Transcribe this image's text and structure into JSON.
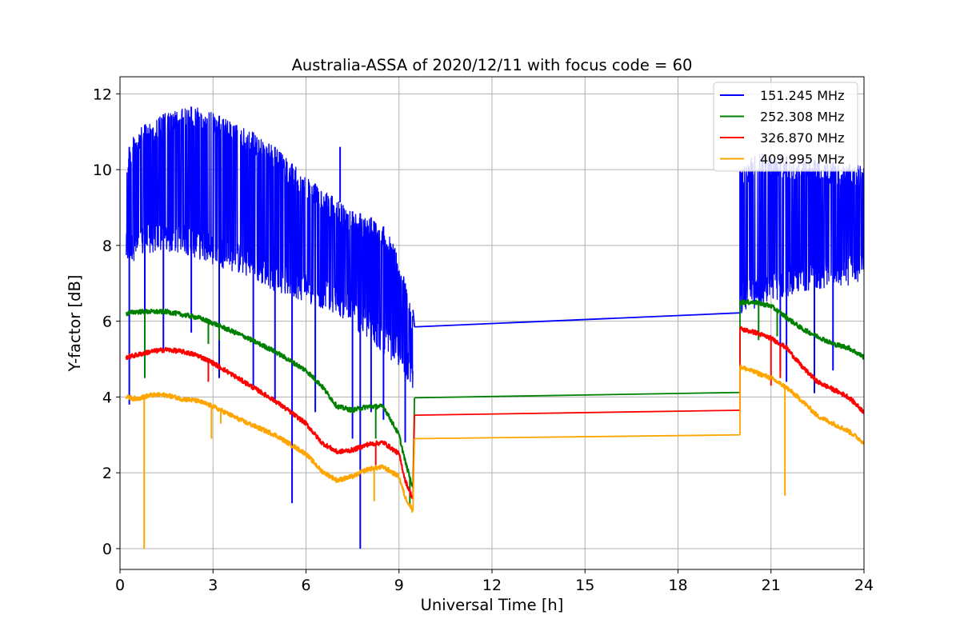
{
  "chart_data": {
    "type": "line",
    "title": "Australia-ASSA of 2020/12/11 with focus code = 60",
    "xlabel": "Universal Time [h]",
    "ylabel": "Y-factor [dB]",
    "xlim": [
      0,
      24
    ],
    "ylim": [
      -0.55,
      12.45
    ],
    "xticks": [
      0,
      3,
      6,
      9,
      12,
      15,
      18,
      21,
      24
    ],
    "xtick_labels": [
      "0",
      "3",
      "6",
      "9",
      "12",
      "15",
      "18",
      "21",
      "24"
    ],
    "yticks": [
      0,
      2,
      4,
      6,
      8,
      10,
      12
    ],
    "ytick_labels": [
      "0",
      "2",
      "4",
      "6",
      "8",
      "10",
      "12"
    ],
    "grid": true,
    "legend_position": "top-right",
    "series": [
      {
        "name": "151.245 MHz",
        "color": "#0000ff",
        "noisy": true,
        "upper": [
          [
            0.2,
            10.4
          ],
          [
            0.5,
            11.0
          ],
          [
            1.0,
            11.3
          ],
          [
            1.5,
            11.5
          ],
          [
            2.0,
            11.6
          ],
          [
            2.5,
            11.7
          ],
          [
            3.0,
            11.5
          ],
          [
            3.5,
            11.3
          ],
          [
            4.0,
            11.1
          ],
          [
            4.5,
            10.9
          ],
          [
            5.0,
            10.6
          ],
          [
            5.5,
            10.2
          ],
          [
            6.0,
            9.8
          ],
          [
            6.5,
            9.5
          ],
          [
            7.0,
            9.2
          ],
          [
            7.5,
            8.9
          ],
          [
            8.0,
            8.8
          ],
          [
            8.5,
            8.5
          ],
          [
            9.0,
            7.8
          ],
          [
            9.3,
            6.6
          ],
          [
            9.45,
            6.3
          ],
          [
            20.0,
            10.0
          ],
          [
            20.5,
            10.5
          ],
          [
            21.0,
            10.4
          ],
          [
            22.0,
            10.3
          ],
          [
            23.0,
            10.2
          ],
          [
            24.0,
            10.1
          ]
        ],
        "lower": [
          [
            0.2,
            7.5
          ],
          [
            1.0,
            7.8
          ],
          [
            2.0,
            7.8
          ],
          [
            3.0,
            7.5
          ],
          [
            4.0,
            7.2
          ],
          [
            5.0,
            6.8
          ],
          [
            6.0,
            6.5
          ],
          [
            7.0,
            6.2
          ],
          [
            8.0,
            5.5
          ],
          [
            9.0,
            4.8
          ],
          [
            9.45,
            4.2
          ],
          [
            20.0,
            6.2
          ],
          [
            21.0,
            6.5
          ],
          [
            22.0,
            6.8
          ],
          [
            23.0,
            6.9
          ],
          [
            24.0,
            7.0
          ]
        ],
        "gap": [
          [
            9.5,
            5.85
          ],
          [
            20.0,
            6.22
          ]
        ],
        "spikes": [
          [
            0.3,
            3.8
          ],
          [
            0.8,
            4.6
          ],
          [
            1.4,
            5.2
          ],
          [
            2.3,
            5.7
          ],
          [
            3.2,
            4.5
          ],
          [
            4.3,
            4.3
          ],
          [
            5.0,
            3.9
          ],
          [
            5.55,
            1.2
          ],
          [
            6.3,
            3.6
          ],
          [
            7.1,
            10.6
          ],
          [
            7.5,
            2.9
          ],
          [
            7.75,
            0.0
          ],
          [
            8.1,
            3.6
          ],
          [
            8.5,
            3.4
          ],
          [
            9.2,
            2.8
          ],
          [
            21.3,
            4.7
          ],
          [
            21.5,
            4.4
          ],
          [
            22.4,
            4.1
          ],
          [
            23.0,
            4.7
          ]
        ]
      },
      {
        "name": "252.308 MHz",
        "color": "#008000",
        "upper": [
          [
            0.2,
            6.2
          ],
          [
            0.5,
            6.25
          ],
          [
            1.5,
            6.25
          ],
          [
            2.5,
            6.1
          ],
          [
            3.0,
            5.95
          ],
          [
            4.0,
            5.6
          ],
          [
            5.0,
            5.2
          ],
          [
            6.0,
            4.7
          ],
          [
            6.5,
            4.3
          ],
          [
            7.0,
            3.75
          ],
          [
            7.5,
            3.65
          ],
          [
            8.0,
            3.75
          ],
          [
            8.5,
            3.75
          ],
          [
            9.0,
            3.0
          ],
          [
            9.2,
            2.3
          ],
          [
            9.45,
            1.6
          ],
          [
            20.0,
            6.5
          ],
          [
            20.5,
            6.5
          ],
          [
            21.0,
            6.4
          ],
          [
            21.5,
            6.1
          ],
          [
            22.0,
            5.8
          ],
          [
            22.5,
            5.6
          ],
          [
            23.0,
            5.4
          ],
          [
            23.5,
            5.3
          ],
          [
            24.0,
            5.05
          ]
        ],
        "gap": [
          [
            9.5,
            3.98
          ],
          [
            20.0,
            4.12
          ]
        ],
        "spikes": [
          [
            0.8,
            4.5
          ],
          [
            2.85,
            5.4
          ],
          [
            3.2,
            5.5
          ],
          [
            8.25,
            2.9
          ],
          [
            9.35,
            1.1
          ],
          [
            20.6,
            5.5
          ],
          [
            21.2,
            5.6
          ]
        ]
      },
      {
        "name": "326.870 MHz",
        "color": "#ff0000",
        "upper": [
          [
            0.2,
            5.05
          ],
          [
            0.5,
            5.1
          ],
          [
            1.0,
            5.2
          ],
          [
            1.5,
            5.25
          ],
          [
            2.0,
            5.2
          ],
          [
            2.5,
            5.1
          ],
          [
            3.0,
            4.9
          ],
          [
            4.0,
            4.4
          ],
          [
            5.0,
            3.9
          ],
          [
            6.0,
            3.3
          ],
          [
            6.5,
            2.8
          ],
          [
            7.0,
            2.55
          ],
          [
            7.5,
            2.6
          ],
          [
            8.0,
            2.75
          ],
          [
            8.5,
            2.8
          ],
          [
            9.0,
            2.5
          ],
          [
            9.2,
            1.8
          ],
          [
            9.45,
            1.3
          ],
          [
            20.0,
            5.8
          ],
          [
            20.5,
            5.7
          ],
          [
            21.0,
            5.55
          ],
          [
            21.5,
            5.3
          ],
          [
            22.0,
            4.8
          ],
          [
            22.5,
            4.4
          ],
          [
            23.0,
            4.2
          ],
          [
            23.5,
            4.0
          ],
          [
            24.0,
            3.6
          ]
        ],
        "gap": [
          [
            9.5,
            3.52
          ],
          [
            20.0,
            3.65
          ]
        ],
        "spikes": [
          [
            2.85,
            4.4
          ],
          [
            8.25,
            2.2
          ],
          [
            21.0,
            4.3
          ],
          [
            21.3,
            4.5
          ]
        ]
      },
      {
        "name": "409.995 MHz",
        "color": "#ffa500",
        "upper": [
          [
            0.2,
            4.0
          ],
          [
            0.5,
            3.95
          ],
          [
            1.0,
            4.05
          ],
          [
            1.5,
            4.05
          ],
          [
            2.0,
            3.95
          ],
          [
            2.5,
            3.9
          ],
          [
            3.0,
            3.75
          ],
          [
            4.0,
            3.35
          ],
          [
            5.0,
            3.0
          ],
          [
            6.0,
            2.5
          ],
          [
            6.5,
            2.05
          ],
          [
            7.0,
            1.8
          ],
          [
            7.5,
            1.9
          ],
          [
            8.0,
            2.1
          ],
          [
            8.5,
            2.15
          ],
          [
            9.0,
            1.9
          ],
          [
            9.2,
            1.35
          ],
          [
            9.45,
            1.0
          ],
          [
            20.0,
            4.8
          ],
          [
            20.5,
            4.65
          ],
          [
            21.0,
            4.5
          ],
          [
            21.5,
            4.25
          ],
          [
            22.0,
            3.9
          ],
          [
            22.5,
            3.5
          ],
          [
            23.0,
            3.3
          ],
          [
            23.5,
            3.1
          ],
          [
            24.0,
            2.8
          ]
        ],
        "gap": [
          [
            9.5,
            2.9
          ],
          [
            20.0,
            3.0
          ]
        ],
        "spikes": [
          [
            0.78,
            0.0
          ],
          [
            2.95,
            2.9
          ],
          [
            3.25,
            3.3
          ],
          [
            8.2,
            1.25
          ],
          [
            21.45,
            1.4
          ]
        ]
      }
    ]
  }
}
